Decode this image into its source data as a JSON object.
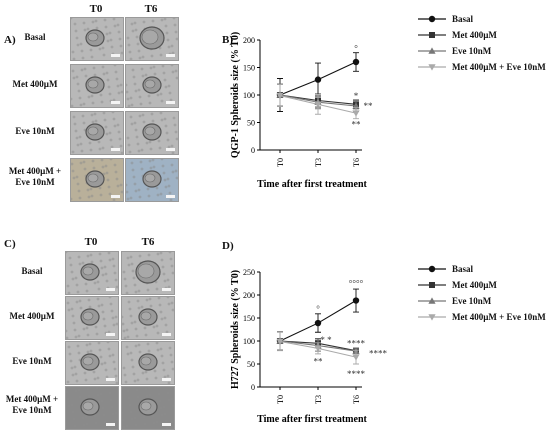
{
  "panels": {
    "a": {
      "letter": "A)",
      "col_headers": [
        "T0",
        "T6"
      ],
      "row_labels": [
        "Basal",
        "Met 400µM",
        "Eve 10nM",
        "Met 400µM + Eve 10nM"
      ]
    },
    "c": {
      "letter": "C)",
      "col_headers": [
        "T0",
        "T6"
      ],
      "row_labels": [
        "Basal",
        "Met 400µM",
        "Eve 10nM",
        "Met 400µM + Eve 10nM"
      ]
    }
  },
  "colors": {
    "basal": "#111111",
    "met": "#333333",
    "eve": "#777777",
    "combo": "#aaaaaa"
  },
  "chart_data": [
    {
      "letter": "B)",
      "type": "line",
      "ylabel": "QGP-1 Spheroids size (% T0)",
      "xlabel": "Time after first treatment",
      "categories": [
        "T0",
        "T3",
        "T6"
      ],
      "ylim": [
        0,
        200
      ],
      "yticks": [
        0,
        50,
        100,
        150,
        200
      ],
      "grid": false,
      "legend_position": "right",
      "series": [
        {
          "name": "Basal",
          "key": "basal",
          "marker": "circle",
          "values": [
            100,
            128,
            160
          ],
          "errors": [
            30,
            30,
            17
          ]
        },
        {
          "name": "Met 400µM",
          "key": "met",
          "marker": "square",
          "values": [
            100,
            90,
            83
          ],
          "errors": [
            20,
            12,
            8
          ]
        },
        {
          "name": "Eve 10nM",
          "key": "eve",
          "marker": "triangle",
          "values": [
            100,
            87,
            80
          ],
          "errors": [
            20,
            12,
            10
          ]
        },
        {
          "name": "Met 400µM + Eve 10nM",
          "key": "combo",
          "marker": "triangle-down",
          "values": [
            99,
            83,
            67
          ],
          "errors": [
            20,
            18,
            10
          ]
        }
      ],
      "annotations": [
        {
          "text": "°",
          "x": "T6",
          "y": 185
        },
        {
          "text": "*",
          "x": "T6",
          "y": 98
        },
        {
          "text": "**",
          "x": "T6",
          "y": 80,
          "dx": 12
        },
        {
          "text": "**",
          "x": "T6",
          "y": 46
        }
      ]
    },
    {
      "letter": "D)",
      "type": "line",
      "ylabel": "H727 Spheroids size (% T0)",
      "xlabel": "Time after first treatment",
      "categories": [
        "T0",
        "T3",
        "T6"
      ],
      "ylim": [
        0,
        250
      ],
      "yticks": [
        0,
        50,
        100,
        150,
        200,
        250
      ],
      "grid": false,
      "legend_position": "right",
      "series": [
        {
          "name": "Basal",
          "key": "basal",
          "marker": "circle",
          "values": [
            100,
            139,
            188
          ],
          "errors": [
            20,
            20,
            25
          ]
        },
        {
          "name": "Met 400µM",
          "key": "met",
          "marker": "square",
          "values": [
            100,
            95,
            79
          ],
          "errors": [
            20,
            10,
            5
          ]
        },
        {
          "name": "Eve 10nM",
          "key": "eve",
          "marker": "triangle",
          "values": [
            100,
            90,
            78
          ],
          "errors": [
            20,
            12,
            5
          ]
        },
        {
          "name": "Met 400µM + Eve 10nM",
          "key": "combo",
          "marker": "triangle-down",
          "values": [
            99,
            84,
            65
          ],
          "errors": [
            20,
            12,
            15
          ]
        }
      ],
      "annotations": [
        {
          "text": "°",
          "x": "T3",
          "y": 170
        },
        {
          "text": "°°°°",
          "x": "T6",
          "y": 225
        },
        {
          "text": "****",
          "x": "T6",
          "y": 95
        },
        {
          "text": "* *",
          "x": "T3",
          "y": 102,
          "dx": 8
        },
        {
          "text": "****",
          "x": "T6",
          "y": 73,
          "dx": 22
        },
        {
          "text": "**",
          "x": "T3",
          "y": 55
        },
        {
          "text": "****",
          "x": "T6",
          "y": 28
        }
      ]
    }
  ]
}
